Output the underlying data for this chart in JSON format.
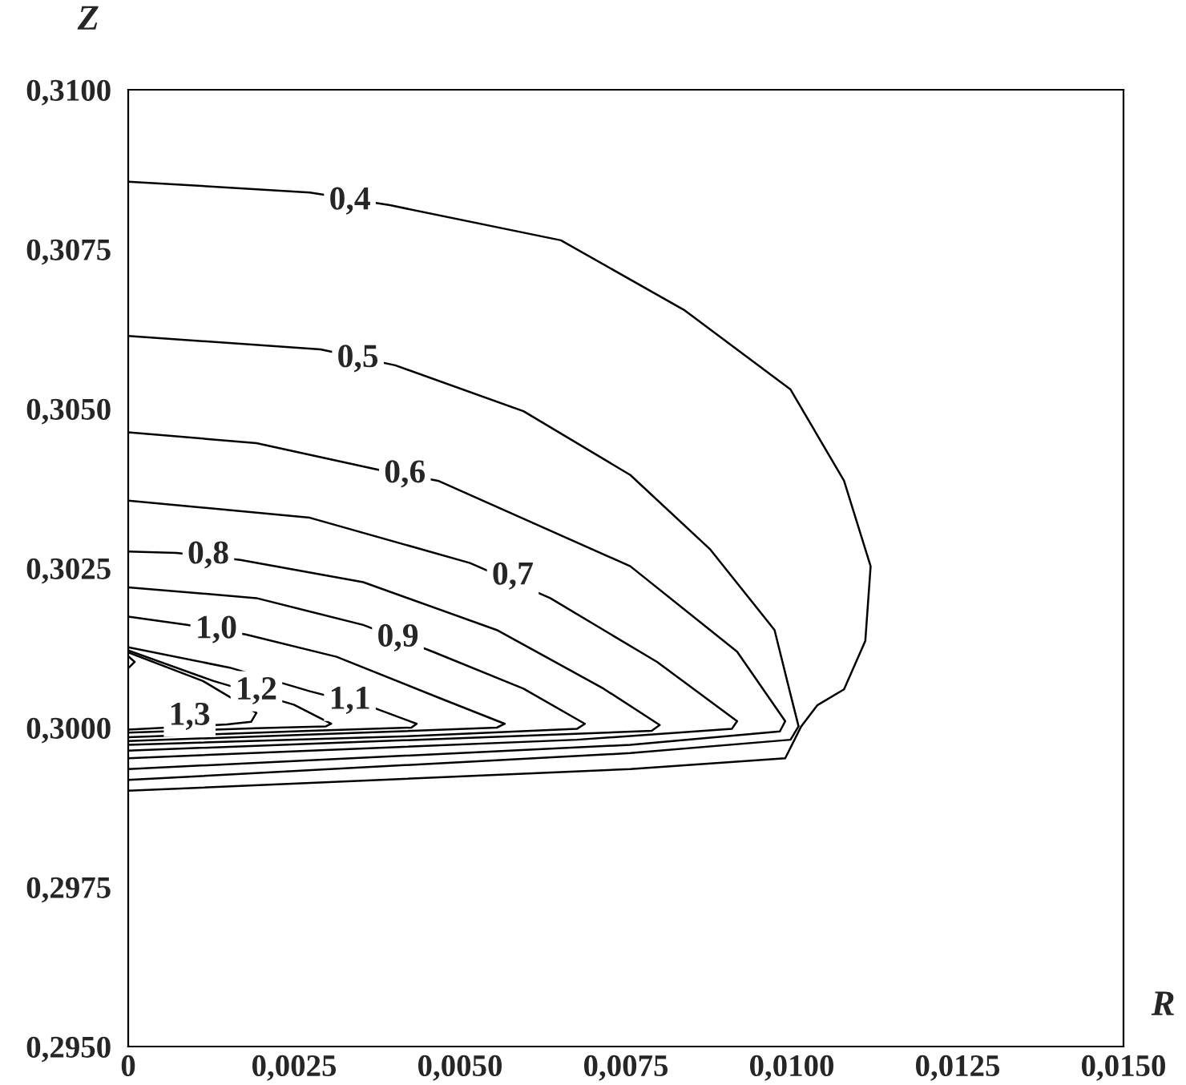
{
  "chart_data": {
    "type": "line",
    "xlabel": "R",
    "ylabel": "Z",
    "xlim": [
      0,
      0.015
    ],
    "ylim": [
      0.295,
      0.31
    ],
    "xticks": [
      0,
      {
        "value": 0.0025,
        "label": "0,0025"
      },
      {
        "value": 0.005,
        "label": "0,0050"
      },
      {
        "value": 0.0075,
        "label": "0,0075"
      },
      {
        "value": 0.01,
        "label": "0,0100"
      },
      {
        "value": 0.0125,
        "label": "0,0125"
      },
      {
        "value": 0.015,
        "label": "0,0150"
      }
    ],
    "yticks": [
      {
        "value": 0.295,
        "label": "0,2950"
      },
      {
        "value": 0.2975,
        "label": "0,2975"
      },
      {
        "value": 0.3,
        "label": "0,3000"
      },
      {
        "value": 0.3025,
        "label": "0,3025"
      },
      {
        "value": 0.305,
        "label": "0,3050"
      },
      {
        "value": 0.3075,
        "label": "0,3075"
      },
      {
        "value": 0.31,
        "label": "0,3100"
      }
    ],
    "grid": false,
    "marker": "none",
    "line_style": "solid",
    "series": [
      {
        "color": "#000000",
        "x": [
          0,
          0.002737,
          0.003945,
          0.006521,
          0.008373,
          0.009982,
          0.010788,
          0.011189,
          0.011109,
          0.010788,
          0.010385,
          0.010143,
          0.009902,
          0.007567,
          0
        ],
        "values": [
          0.30856,
          0.30839,
          0.30819,
          0.30764,
          0.30655,
          0.3053,
          0.30387,
          0.30253,
          0.30136,
          0.3006,
          0.30035,
          0.30002,
          0.29952,
          0.29935,
          0.29901
        ]
      },
      {
        "color": "#000000",
        "x": [
          0,
          0.002898,
          0.004025,
          0.005957,
          0.007567,
          0.008775,
          0.009741,
          0.009982,
          0.010103,
          0.009982,
          0.007567,
          0
        ],
        "values": [
          0.30614,
          0.30593,
          0.30568,
          0.30496,
          0.30396,
          0.30279,
          0.30153,
          0.30052,
          0.30002,
          0.29981,
          0.2996,
          0.29918
        ]
      },
      {
        "color": "#000000",
        "x": [
          0,
          0.001932,
          0.003784,
          0.004669,
          0.007567,
          0.009177,
          0.009902,
          0.009821,
          0.007567,
          0
        ],
        "values": [
          0.30463,
          0.30446,
          0.30404,
          0.30387,
          0.30253,
          0.30119,
          0.3001,
          0.29994,
          0.29973,
          0.29935
        ]
      },
      {
        "color": "#000000",
        "x": [
          0,
          0.002737,
          0.005152,
          0.00636,
          0.00797,
          0.009177,
          0.009097,
          0.006762,
          0
        ],
        "values": [
          0.30356,
          0.30329,
          0.30258,
          0.30203,
          0.30103,
          0.3001,
          0.29998,
          0.29981,
          0.29952
        ]
      },
      {
        "color": "#000000",
        "x": [
          0,
          0.000725,
          0.001691,
          0.003542,
          0.005555,
          0.007165,
          0.00801,
          0.007889,
          0.005152,
          0
        ],
        "values": [
          0.30276,
          0.30274,
          0.30263,
          0.30228,
          0.30153,
          0.30061,
          0.30004,
          0.29995,
          0.29984,
          0.29964
        ]
      },
      {
        "color": "#000000",
        "x": [
          0,
          0.001932,
          0.003542,
          0.004589,
          0.005957,
          0.006883,
          0.006762,
          0.004347,
          0
        ],
        "values": [
          0.3022,
          0.30203,
          0.30161,
          0.30119,
          0.30061,
          0.30006,
          0.29998,
          0.29987,
          0.29973
        ]
      },
      {
        "color": "#000000",
        "x": [
          0,
          0.000886,
          0.001771,
          0.00314,
          0.00475,
          0.005675,
          0.005555,
          0.003542,
          0
        ],
        "values": [
          0.30174,
          0.30161,
          0.30146,
          0.30111,
          0.30044,
          0.30006,
          0.3,
          0.29992,
          0.29979
        ]
      },
      {
        "color": "#000000",
        "x": [
          0,
          0.00153,
          0.002737,
          0.003703,
          0.004347,
          0.004267,
          0.002737,
          0
        ],
        "values": [
          0.30126,
          0.30094,
          0.30057,
          0.30031,
          0.30006,
          0.3,
          0.29995,
          0.29985
        ]
      },
      {
        "color": "#000000",
        "x": [
          0,
          0.001288,
          0.002496,
          0.003059,
          0.002979,
          0.001932,
          0
        ],
        "values": [
          0.30121,
          0.30073,
          0.30036,
          0.30006,
          0.30002,
          0.29999,
          0.29992
        ]
      },
      {
        "color": "#000000",
        "x": [
          0,
          0.001127,
          0.001932,
          0.001852,
          0.001489,
          0
        ],
        "values": [
          0.30118,
          0.30073,
          0.30023,
          0.30009,
          0.30005,
          0.29997
        ]
      },
      {
        "color": "#000000",
        "x": [
          0,
          9.7e-05,
          0
        ],
        "values": [
          0.30112,
          0.30103,
          0.30093
        ]
      }
    ],
    "annotations": [
      {
        "text": "0,4",
        "x": 0.003341,
        "y": 0.30825
      },
      {
        "text": "0,5",
        "x": 0.003462,
        "y": 0.30578
      },
      {
        "text": "0,6",
        "x": 0.00417,
        "y": 0.30397
      },
      {
        "text": "0,7",
        "x": 0.005796,
        "y": 0.30237
      },
      {
        "text": "0,8",
        "x": 0.001208,
        "y": 0.3027
      },
      {
        "text": "0,9",
        "x": 0.004065,
        "y": 0.3014
      },
      {
        "text": "1,0",
        "x": 0.001328,
        "y": 0.30153
      },
      {
        "text": "1,1",
        "x": 0.003341,
        "y": 0.30042
      },
      {
        "text": "1,2",
        "x": 0.001932,
        "y": 0.30057
      },
      {
        "text": "1,3",
        "x": 0.000926,
        "y": 0.30017
      }
    ]
  }
}
